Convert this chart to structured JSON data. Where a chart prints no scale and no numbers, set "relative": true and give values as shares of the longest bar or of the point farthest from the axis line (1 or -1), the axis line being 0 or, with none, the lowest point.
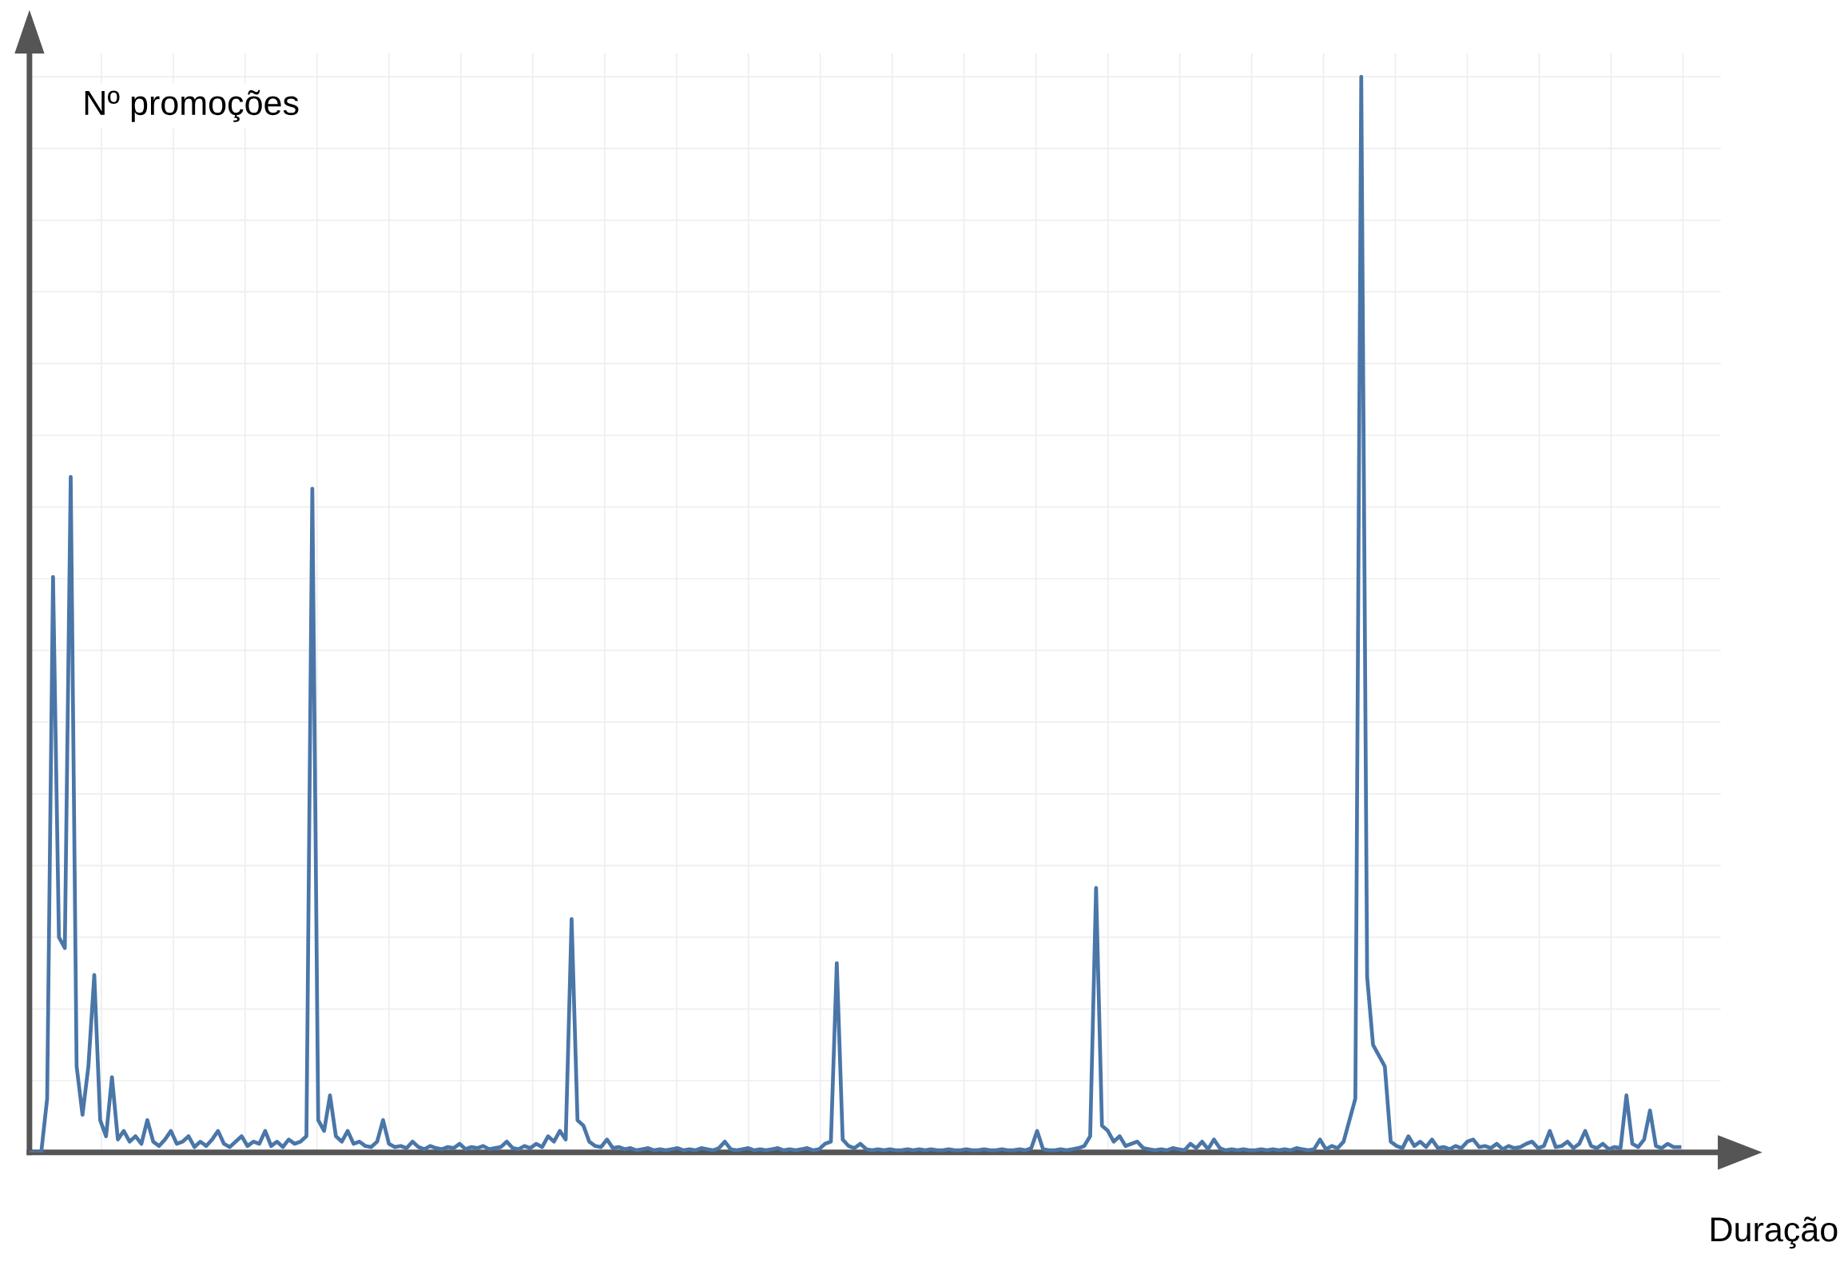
{
  "chart_data": {
    "type": "line",
    "relative": true,
    "grid": true,
    "ylabel": "Nº promoções",
    "xlabel": "Duração",
    "categories": [
      null,
      null,
      null,
      null,
      null,
      null,
      null,
      null,
      null,
      null,
      null,
      null,
      null,
      null,
      null,
      null,
      null,
      null,
      null,
      null,
      null,
      null,
      null,
      null,
      null,
      null,
      null,
      null,
      null,
      null,
      null,
      null,
      null,
      null,
      null,
      null,
      null,
      null,
      null,
      null,
      null,
      null,
      null,
      null,
      null,
      null,
      null,
      null,
      null,
      null,
      null,
      null,
      null,
      null,
      null,
      null,
      null,
      null,
      null,
      null,
      null,
      null,
      null,
      null,
      null,
      null,
      null,
      null,
      null,
      null,
      null,
      null,
      null,
      null,
      null,
      null,
      null,
      null,
      null,
      null,
      null,
      null,
      null,
      null,
      null,
      null,
      null,
      null,
      null,
      null,
      null,
      null,
      null,
      null,
      null,
      null,
      null,
      null,
      null,
      null,
      null,
      null,
      null,
      null,
      null,
      null,
      null,
      null,
      null,
      null,
      null,
      null,
      null,
      null,
      null,
      null,
      null,
      null,
      null,
      null,
      null,
      null,
      null,
      null,
      null,
      null,
      null,
      null,
      null,
      null,
      null,
      null,
      null,
      null,
      null,
      null,
      null,
      null,
      null,
      null,
      null,
      null,
      null,
      null,
      null,
      null,
      null,
      null,
      null,
      null,
      null,
      null,
      null,
      null,
      null,
      null,
      null,
      null,
      null,
      null,
      null,
      null,
      null,
      null,
      null,
      null,
      null,
      null,
      null,
      null,
      null,
      null,
      null,
      null,
      null,
      null,
      null,
      null,
      null,
      null,
      null,
      null,
      null,
      null,
      null,
      null,
      null,
      null,
      null,
      null,
      null,
      null,
      null,
      null,
      null,
      null,
      null,
      null,
      null,
      null,
      null,
      null,
      null,
      null,
      null,
      null,
      null,
      null,
      null,
      null,
      null,
      null,
      null,
      null,
      null,
      null,
      null,
      null,
      null,
      null,
      null,
      null,
      null,
      null,
      null,
      null,
      null,
      null,
      null,
      null,
      null,
      null,
      null,
      null,
      null,
      null,
      null,
      null,
      null,
      null,
      null,
      null,
      null,
      null,
      null,
      null,
      null,
      null,
      null,
      null,
      null,
      null,
      null,
      null,
      null,
      null,
      null,
      null,
      null,
      null,
      null,
      null,
      null,
      null,
      null,
      null,
      null,
      null,
      null,
      null,
      null,
      null,
      null,
      null,
      null,
      null,
      null,
      null,
      null,
      null,
      null
    ],
    "series": [
      {
        "color": "#4a76a8",
        "values": [
          0,
          0,
          0,
          0.05,
          0.535,
          0.2,
          0.19,
          0.628,
          0.08,
          0.035,
          0.08,
          0.165,
          0.03,
          0.015,
          0.07,
          0.012,
          0.02,
          0.01,
          0.015,
          0.008,
          0.03,
          0.01,
          0.006,
          0.012,
          0.02,
          0.008,
          0.01,
          0.015,
          0.005,
          0.01,
          0.006,
          0.012,
          0.02,
          0.008,
          0.005,
          0.01,
          0.015,
          0.006,
          0.01,
          0.008,
          0.02,
          0.006,
          0.01,
          0.005,
          0.012,
          0.008,
          0.01,
          0.015,
          0.617,
          0.03,
          0.02,
          0.053,
          0.015,
          0.01,
          0.02,
          0.008,
          0.01,
          0.006,
          0.005,
          0.01,
          0.03,
          0.008,
          0.005,
          0.006,
          0.004,
          0.01,
          0.005,
          0.003,
          0.006,
          0.004,
          0.003,
          0.005,
          0.004,
          0.008,
          0.003,
          0.005,
          0.004,
          0.006,
          0.003,
          0.004,
          0.005,
          0.01,
          0.004,
          0.003,
          0.006,
          0.004,
          0.008,
          0.005,
          0.015,
          0.01,
          0.02,
          0.012,
          0.217,
          0.03,
          0.025,
          0.01,
          0.006,
          0.005,
          0.012,
          0.004,
          0.005,
          0.003,
          0.004,
          0.002,
          0.003,
          0.004,
          0.002,
          0.003,
          0.002,
          0.003,
          0.004,
          0.002,
          0.003,
          0.002,
          0.004,
          0.003,
          0.002,
          0.004,
          0.01,
          0.003,
          0.002,
          0.003,
          0.004,
          0.002,
          0.003,
          0.002,
          0.003,
          0.004,
          0.002,
          0.003,
          0.002,
          0.003,
          0.004,
          0.002,
          0.003,
          0.008,
          0.01,
          0.176,
          0.012,
          0.006,
          0.004,
          0.008,
          0.003,
          0.002,
          0.003,
          0.002,
          0.003,
          0.002,
          0.002,
          0.003,
          0.002,
          0.003,
          0.002,
          0.003,
          0.002,
          0.002,
          0.003,
          0.002,
          0.002,
          0.003,
          0.002,
          0.002,
          0.003,
          0.002,
          0.002,
          0.003,
          0.002,
          0.002,
          0.003,
          0.002,
          0.004,
          0.02,
          0.003,
          0.002,
          0.002,
          0.003,
          0.002,
          0.003,
          0.004,
          0.006,
          0.015,
          0.246,
          0.025,
          0.02,
          0.01,
          0.015,
          0.006,
          0.008,
          0.01,
          0.004,
          0.003,
          0.002,
          0.003,
          0.002,
          0.004,
          0.003,
          0.002,
          0.008,
          0.004,
          0.01,
          0.003,
          0.012,
          0.004,
          0.002,
          0.003,
          0.002,
          0.003,
          0.002,
          0.002,
          0.003,
          0.002,
          0.003,
          0.002,
          0.003,
          0.002,
          0.004,
          0.003,
          0.002,
          0.003,
          0.012,
          0.003,
          0.006,
          0.004,
          0.01,
          0.03,
          0.05,
          1,
          0.163,
          0.1,
          0.09,
          0.08,
          0.01,
          0.006,
          0.004,
          0.015,
          0.006,
          0.01,
          0.005,
          0.012,
          0.004,
          0.005,
          0.003,
          0.006,
          0.004,
          0.01,
          0.012,
          0.005,
          0.006,
          0.004,
          0.008,
          0.003,
          0.006,
          0.004,
          0.005,
          0.008,
          0.01,
          0.004,
          0.006,
          0.02,
          0.005,
          0.006,
          0.01,
          0.004,
          0.008,
          0.02,
          0.006,
          0.004,
          0.008,
          0.003,
          0.005,
          0.004,
          0.053,
          0.008,
          0.005,
          0.012,
          0.039,
          0.006,
          0.004,
          0.008,
          0.005,
          0.005
        ]
      }
    ]
  }
}
